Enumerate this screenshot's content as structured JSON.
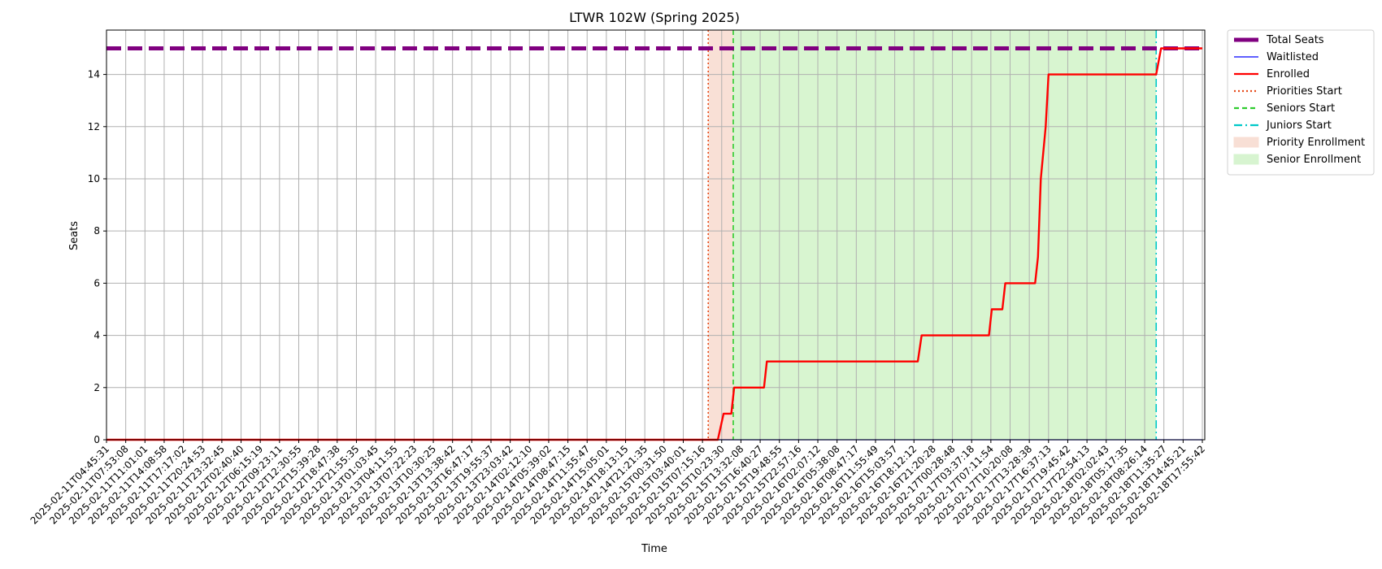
{
  "chart_data": {
    "type": "line",
    "title": "LTWR 102W (Spring 2025)",
    "xlabel": "Time",
    "ylabel": "Seats",
    "ylim": [
      0,
      15.7
    ],
    "yticks": [
      0,
      2,
      4,
      6,
      8,
      10,
      12,
      14
    ],
    "grid": true,
    "legend_placement": "outside-top-right",
    "x_ticks": [
      "2025-02-11T04:45:31",
      "2025-02-11T07:53:08",
      "2025-02-11T11:01:01",
      "2025-02-11T14:08:58",
      "2025-02-11T17:17:02",
      "2025-02-11T20:24:53",
      "2025-02-11T23:32:45",
      "2025-02-12T02:40:40",
      "2025-02-12T06:15:19",
      "2025-02-12T09:23:11",
      "2025-02-12T12:30:55",
      "2025-02-12T15:39:28",
      "2025-02-12T18:47:38",
      "2025-02-12T21:55:35",
      "2025-02-13T01:03:45",
      "2025-02-13T04:11:55",
      "2025-02-13T07:22:23",
      "2025-02-13T10:30:25",
      "2025-02-13T13:38:42",
      "2025-02-13T16:47:17",
      "2025-02-13T19:55:37",
      "2025-02-13T23:03:42",
      "2025-02-14T02:12:10",
      "2025-02-14T05:39:02",
      "2025-02-14T08:47:15",
      "2025-02-14T11:55:47",
      "2025-02-14T15:05:01",
      "2025-02-14T18:13:15",
      "2025-02-14T21:21:35",
      "2025-02-15T00:31:50",
      "2025-02-15T03:40:01",
      "2025-02-15T07:15:16",
      "2025-02-15T10:23:30",
      "2025-02-15T13:32:08",
      "2025-02-15T16:40:27",
      "2025-02-15T19:48:55",
      "2025-02-15T22:57:16",
      "2025-02-16T02:07:12",
      "2025-02-16T05:38:08",
      "2025-02-16T08:47:17",
      "2025-02-16T11:55:49",
      "2025-02-16T15:03:57",
      "2025-02-16T18:12:12",
      "2025-02-16T21:20:28",
      "2025-02-17T00:28:48",
      "2025-02-17T03:37:18",
      "2025-02-17T07:11:54",
      "2025-02-17T10:20:08",
      "2025-02-17T13:28:38",
      "2025-02-17T16:37:13",
      "2025-02-17T19:45:42",
      "2025-02-17T22:54:13",
      "2025-02-18T02:02:43",
      "2025-02-18T05:17:35",
      "2025-02-18T08:26:14",
      "2025-02-18T11:35:27",
      "2025-02-18T14:45:21",
      "2025-02-18T17:55:42"
    ],
    "series": [
      {
        "name": "Total Seats",
        "color": "#800080",
        "style": "dashed-thick",
        "points": [
          [
            0,
            15
          ],
          [
            57,
            15
          ]
        ]
      },
      {
        "name": "Waitlisted",
        "color": "#0000ff",
        "style": "solid-thin",
        "points": [
          [
            0,
            0
          ],
          [
            57,
            0
          ]
        ]
      },
      {
        "name": "Enrolled",
        "color": "#ff0000",
        "style": "solid",
        "points": [
          [
            0,
            0
          ],
          [
            31.8,
            0
          ],
          [
            32.1,
            1
          ],
          [
            32.5,
            1
          ],
          [
            32.65,
            2
          ],
          [
            34.2,
            2
          ],
          [
            34.35,
            3
          ],
          [
            42.2,
            3
          ],
          [
            42.4,
            4
          ],
          [
            45.9,
            4
          ],
          [
            46.05,
            5
          ],
          [
            46.6,
            5
          ],
          [
            46.75,
            6
          ],
          [
            48.3,
            6
          ],
          [
            48.45,
            7
          ],
          [
            48.6,
            10
          ],
          [
            48.85,
            12
          ],
          [
            49.0,
            14
          ],
          [
            54.6,
            14
          ],
          [
            54.85,
            15
          ],
          [
            57,
            15
          ]
        ]
      }
    ],
    "markers": [
      {
        "name": "Priorities Start",
        "x": 31.3,
        "color": "#e64a19",
        "style": "dotted"
      },
      {
        "name": "Seniors Start",
        "x": 32.6,
        "color": "#2ecc2e",
        "style": "dashed"
      },
      {
        "name": "Juniors Start",
        "x": 54.6,
        "color": "#00c8c8",
        "style": "dashdot"
      }
    ],
    "regions": [
      {
        "name": "Priority Enrollment",
        "from": 31.3,
        "to": 32.6,
        "color": "#f4c6b4"
      },
      {
        "name": "Senior Enrollment",
        "from": 32.6,
        "to": 54.6,
        "color": "#b8ecaa"
      }
    ]
  }
}
